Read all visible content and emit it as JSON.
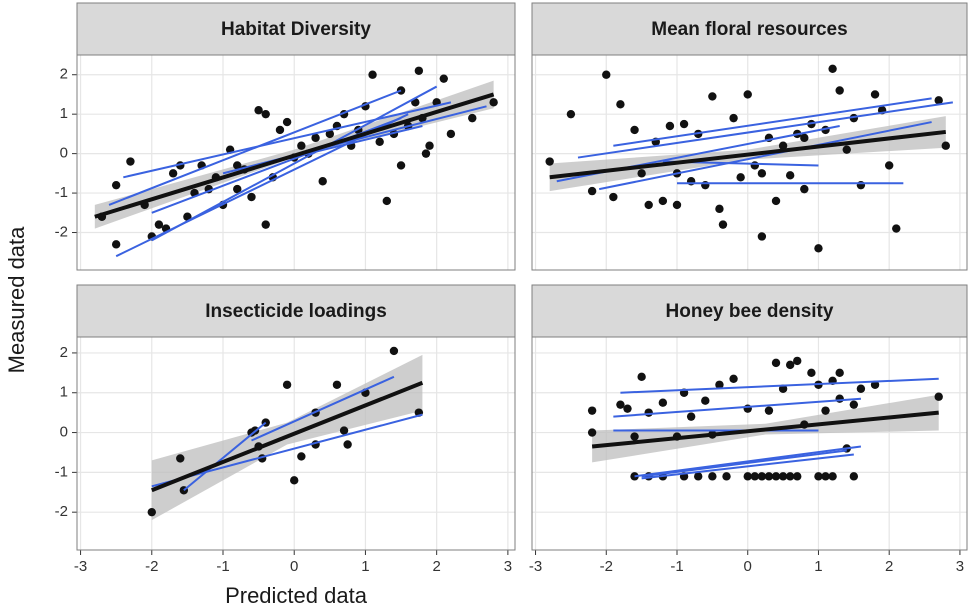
{
  "xlabel": "Predicted data",
  "ylabel": "Measured data",
  "chart_data": [
    {
      "type": "scatter",
      "title": "Habitat Diversity",
      "color": "#111111",
      "line_color": "#3a62e0",
      "band_color": "#bdbdbd",
      "xlim": [
        -3.05,
        3.1
      ],
      "ylim": [
        -2.95,
        2.5
      ],
      "xticks": [
        -3,
        -2,
        -1,
        0,
        1,
        2,
        3
      ],
      "yticks": [
        -2,
        -1,
        0,
        1,
        2
      ],
      "grid": true,
      "x": [
        -2.7,
        -2.5,
        -2.5,
        -2.3,
        -2.1,
        -2.0,
        -1.9,
        -1.8,
        -1.7,
        -1.6,
        -1.5,
        -1.4,
        -1.3,
        -1.2,
        -1.1,
        -1.0,
        -0.9,
        -0.8,
        -0.8,
        -0.7,
        -0.6,
        -0.5,
        -0.4,
        -0.4,
        -0.3,
        -0.2,
        -0.1,
        0.0,
        0.1,
        0.2,
        0.3,
        0.4,
        0.5,
        0.6,
        0.7,
        0.8,
        0.9,
        1.0,
        1.1,
        1.2,
        1.3,
        1.4,
        1.5,
        1.6,
        1.7,
        1.8,
        1.9,
        2.0,
        2.1,
        2.2,
        2.5,
        2.8,
        1.75,
        1.5,
        1.85
      ],
      "values": [
        -1.6,
        -2.3,
        -0.8,
        -0.2,
        -1.3,
        -2.1,
        -1.8,
        -1.9,
        -0.5,
        -0.3,
        -1.6,
        -1.0,
        -0.3,
        -0.9,
        -0.6,
        -1.3,
        0.1,
        -0.3,
        -0.9,
        -0.4,
        -1.1,
        1.1,
        1.0,
        -1.8,
        -0.6,
        0.6,
        0.8,
        -0.1,
        0.2,
        0.0,
        0.4,
        -0.7,
        0.5,
        0.7,
        1.0,
        0.2,
        0.6,
        1.2,
        2.0,
        0.3,
        -1.2,
        0.5,
        1.6,
        0.7,
        1.3,
        0.9,
        0.2,
        1.3,
        1.9,
        0.5,
        0.9,
        1.3,
        2.1,
        -0.3,
        0.0
      ],
      "band": {
        "x": [
          -2.8,
          0,
          2.8
        ],
        "upper": [
          -1.3,
          0.1,
          1.85
        ],
        "lower": [
          -1.9,
          -0.1,
          1.15
        ]
      },
      "fit": {
        "x": [
          -2.8,
          2.8
        ],
        "values": [
          -1.6,
          1.5
        ]
      },
      "lines": [
        {
          "x": [
            -2.5,
            1.6
          ],
          "values": [
            -2.6,
            1.0
          ]
        },
        {
          "x": [
            -2.4,
            2.2
          ],
          "values": [
            -0.6,
            1.3
          ]
        },
        {
          "x": [
            -2.6,
            1.5
          ],
          "values": [
            -1.3,
            1.6
          ]
        },
        {
          "x": [
            -2.0,
            2.0
          ],
          "values": [
            -2.2,
            1.7
          ]
        },
        {
          "x": [
            -1.0,
            2.7
          ],
          "values": [
            -0.5,
            1.2
          ]
        },
        {
          "x": [
            -0.5,
            1.8
          ],
          "values": [
            -0.3,
            0.7
          ]
        },
        {
          "x": [
            -2.0,
            1.5
          ],
          "values": [
            -1.5,
            0.9
          ]
        }
      ]
    },
    {
      "type": "scatter",
      "title": "Mean floral resources",
      "color": "#111111",
      "line_color": "#3a62e0",
      "band_color": "#bdbdbd",
      "xlim": [
        -3.05,
        3.1
      ],
      "ylim": [
        -2.95,
        2.5
      ],
      "xticks": [
        -3,
        -2,
        -1,
        0,
        1,
        2,
        3
      ],
      "yticks": [
        -2,
        -1,
        0,
        1,
        2
      ],
      "grid": true,
      "x": [
        -2.8,
        -2.5,
        -2.2,
        -2.0,
        -1.9,
        -1.8,
        -1.6,
        -1.5,
        -1.4,
        -1.3,
        -1.2,
        -1.1,
        -1.0,
        -0.9,
        -0.8,
        -0.7,
        -0.6,
        -0.5,
        -0.4,
        -0.35,
        -0.2,
        -0.1,
        0.0,
        0.1,
        0.2,
        0.3,
        0.4,
        0.5,
        0.6,
        0.7,
        0.8,
        0.9,
        1.0,
        1.1,
        1.2,
        1.3,
        1.4,
        1.5,
        1.6,
        1.8,
        1.9,
        2.0,
        2.1,
        2.7,
        2.8,
        0.2,
        -1.0,
        0.8
      ],
      "values": [
        -0.2,
        1.0,
        -0.95,
        2.0,
        -1.1,
        1.25,
        0.6,
        -0.5,
        -1.3,
        0.3,
        -1.2,
        0.7,
        -1.3,
        0.75,
        -0.7,
        0.5,
        -0.8,
        1.45,
        -1.4,
        -1.8,
        0.9,
        -0.6,
        1.5,
        -0.3,
        -0.5,
        0.4,
        -1.2,
        0.2,
        -0.55,
        0.5,
        -0.9,
        0.75,
        -2.4,
        0.6,
        2.15,
        1.6,
        0.1,
        0.9,
        -0.8,
        1.5,
        1.1,
        -0.3,
        -1.9,
        1.35,
        0.2,
        -2.1,
        -0.5,
        0.4
      ],
      "band": {
        "x": [
          -2.8,
          0,
          2.8
        ],
        "upper": [
          -0.25,
          0.1,
          0.95
        ],
        "lower": [
          -0.95,
          -0.15,
          0.15
        ]
      },
      "fit": {
        "x": [
          -2.8,
          2.8
        ],
        "values": [
          -0.6,
          0.55
        ]
      },
      "lines": [
        {
          "x": [
            -2.7,
            1.3
          ],
          "values": [
            -0.7,
            0.7
          ]
        },
        {
          "x": [
            -2.4,
            2.9
          ],
          "values": [
            -0.1,
            1.3
          ]
        },
        {
          "x": [
            -2.1,
            2.6
          ],
          "values": [
            -0.9,
            0.8
          ]
        },
        {
          "x": [
            -1.9,
            2.6
          ],
          "values": [
            0.2,
            1.4
          ]
        },
        {
          "x": [
            -1.0,
            2.2
          ],
          "values": [
            -0.75,
            -0.75
          ]
        },
        {
          "x": [
            -1.2,
            1.0
          ],
          "values": [
            -0.2,
            -0.3
          ]
        }
      ]
    },
    {
      "type": "scatter",
      "title": "Insecticide loadings",
      "color": "#111111",
      "line_color": "#3a62e0",
      "band_color": "#bdbdbd",
      "xlim": [
        -3.05,
        3.1
      ],
      "ylim": [
        -2.95,
        2.4
      ],
      "xticks": [
        -3,
        -2,
        -1,
        0,
        1,
        2,
        3
      ],
      "yticks": [
        -2,
        -1,
        0,
        1,
        2
      ],
      "grid": true,
      "x": [
        -2.0,
        -1.6,
        -1.55,
        -0.55,
        -0.4,
        -0.5,
        -0.45,
        -0.6,
        0.0,
        -0.1,
        0.1,
        0.3,
        0.3,
        0.6,
        0.7,
        0.75,
        1.0,
        1.4,
        1.75
      ],
      "values": [
        -2.0,
        -0.65,
        -1.45,
        0.05,
        0.25,
        -0.35,
        -0.65,
        0.0,
        -1.2,
        1.2,
        -0.6,
        0.5,
        -0.3,
        1.2,
        0.05,
        -0.3,
        1.0,
        2.05,
        0.5
      ],
      "band": {
        "x": [
          -2.0,
          -0.1,
          1.8
        ],
        "upper": [
          -0.7,
          0.25,
          1.95
        ],
        "lower": [
          -2.2,
          -0.3,
          0.55
        ]
      },
      "fit": {
        "x": [
          -2.0,
          1.8
        ],
        "values": [
          -1.45,
          1.25
        ]
      },
      "lines": [
        {
          "x": [
            -1.55,
            -0.4
          ],
          "values": [
            -1.45,
            0.25
          ]
        },
        {
          "x": [
            -2.0,
            1.8
          ],
          "values": [
            -1.35,
            0.45
          ]
        },
        {
          "x": [
            -0.6,
            1.4
          ],
          "values": [
            -0.2,
            1.4
          ]
        }
      ]
    },
    {
      "type": "scatter",
      "title": "Honey bee density",
      "color": "#111111",
      "line_color": "#3a62e0",
      "band_color": "#bdbdbd",
      "xlim": [
        -3.05,
        3.1
      ],
      "ylim": [
        -2.95,
        2.4
      ],
      "xticks": [
        -3,
        -2,
        -1,
        0,
        1,
        2,
        3
      ],
      "yticks": [
        -2,
        -1,
        0,
        1,
        2
      ],
      "grid": true,
      "x": [
        -1.6,
        -1.4,
        -1.2,
        -0.9,
        -0.7,
        -0.5,
        -0.3,
        0.0,
        0.1,
        0.2,
        0.3,
        0.4,
        0.5,
        0.6,
        0.7,
        1.0,
        1.1,
        1.2,
        1.5,
        -2.2,
        -2.2,
        -1.8,
        -1.7,
        -1.5,
        -1.4,
        -1.2,
        -1.0,
        -0.9,
        -0.8,
        -0.6,
        -0.5,
        -0.4,
        -0.2,
        0.0,
        0.3,
        0.4,
        0.5,
        0.6,
        0.7,
        0.8,
        0.9,
        1.0,
        1.1,
        1.2,
        1.3,
        1.4,
        1.5,
        1.6,
        1.8,
        2.7,
        -1.6,
        1.3
      ],
      "values": [
        -1.1,
        -1.1,
        -1.1,
        -1.1,
        -1.1,
        -1.1,
        -1.1,
        -1.1,
        -1.1,
        -1.1,
        -1.1,
        -1.1,
        -1.1,
        -1.1,
        -1.1,
        -1.1,
        -1.1,
        -1.1,
        -1.1,
        0.55,
        0.0,
        0.7,
        0.6,
        1.4,
        0.5,
        0.75,
        -0.1,
        1.0,
        0.4,
        0.8,
        -0.05,
        1.2,
        1.35,
        0.6,
        0.55,
        1.75,
        1.1,
        1.7,
        1.8,
        0.2,
        1.5,
        1.2,
        0.55,
        1.3,
        0.85,
        -0.4,
        0.7,
        1.1,
        1.2,
        0.9,
        -0.1,
        1.5
      ],
      "band": {
        "x": [
          -2.2,
          0.25,
          2.7
        ],
        "upper": [
          0.05,
          0.22,
          0.95
        ],
        "lower": [
          -0.75,
          -0.05,
          0.05
        ]
      },
      "fit": {
        "x": [
          -2.2,
          2.7
        ],
        "values": [
          -0.35,
          0.5
        ]
      },
      "lines": [
        {
          "x": [
            -1.8,
            2.7
          ],
          "values": [
            1.0,
            1.35
          ]
        },
        {
          "x": [
            -1.9,
            1.6
          ],
          "values": [
            0.4,
            0.85
          ]
        },
        {
          "x": [
            -1.9,
            1.0
          ],
          "values": [
            0.05,
            0.05
          ]
        },
        {
          "x": [
            -1.6,
            1.6
          ],
          "values": [
            -1.1,
            -0.35
          ]
        },
        {
          "x": [
            -1.5,
            1.5
          ],
          "values": [
            -1.15,
            -0.55
          ]
        },
        {
          "x": [
            -1.5,
            1.4
          ],
          "values": [
            -1.1,
            -0.45
          ]
        }
      ]
    }
  ]
}
